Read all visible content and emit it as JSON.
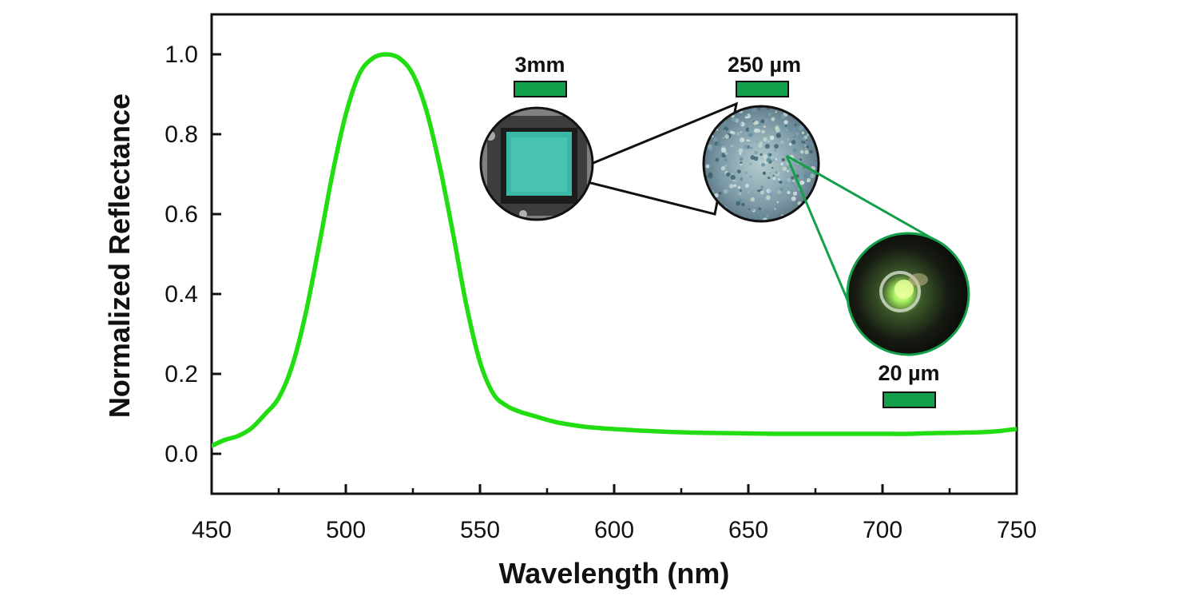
{
  "chart_data": {
    "type": "line",
    "xlabel": "Wavelength (nm)",
    "ylabel": "Normalized Reflectance",
    "xlim": [
      450,
      750
    ],
    "ylim": [
      -0.1,
      1.1
    ],
    "xticks": [
      450,
      500,
      550,
      600,
      650,
      700,
      750
    ],
    "yticks": [
      0.0,
      0.2,
      0.4,
      0.6,
      0.8,
      1.0
    ],
    "grid": false,
    "series": [
      {
        "color": "#22dd11",
        "x": [
          450,
          455,
          460,
          465,
          470,
          475,
          480,
          485,
          490,
          495,
          500,
          505,
          510,
          515,
          520,
          525,
          530,
          535,
          540,
          545,
          550,
          555,
          560,
          565,
          570,
          575,
          580,
          590,
          600,
          610,
          620,
          630,
          640,
          650,
          660,
          670,
          680,
          690,
          700,
          710,
          720,
          730,
          740,
          750
        ],
        "y": [
          0.02,
          0.035,
          0.045,
          0.065,
          0.1,
          0.14,
          0.22,
          0.35,
          0.52,
          0.7,
          0.85,
          0.95,
          0.99,
          1.0,
          0.99,
          0.95,
          0.86,
          0.72,
          0.55,
          0.37,
          0.23,
          0.15,
          0.12,
          0.105,
          0.095,
          0.085,
          0.077,
          0.067,
          0.062,
          0.058,
          0.055,
          0.053,
          0.052,
          0.051,
          0.05,
          0.05,
          0.05,
          0.05,
          0.05,
          0.05,
          0.052,
          0.053,
          0.055,
          0.062
        ]
      }
    ]
  },
  "insets": {
    "scale_bars": [
      {
        "label": "3mm",
        "color": "#14a04a"
      },
      {
        "label": "250 µm",
        "color": "#14a04a"
      },
      {
        "label": "20 µm",
        "color": "#14a04a"
      }
    ],
    "zoom_line_colors": [
      "#111111",
      "#14a04a"
    ]
  }
}
